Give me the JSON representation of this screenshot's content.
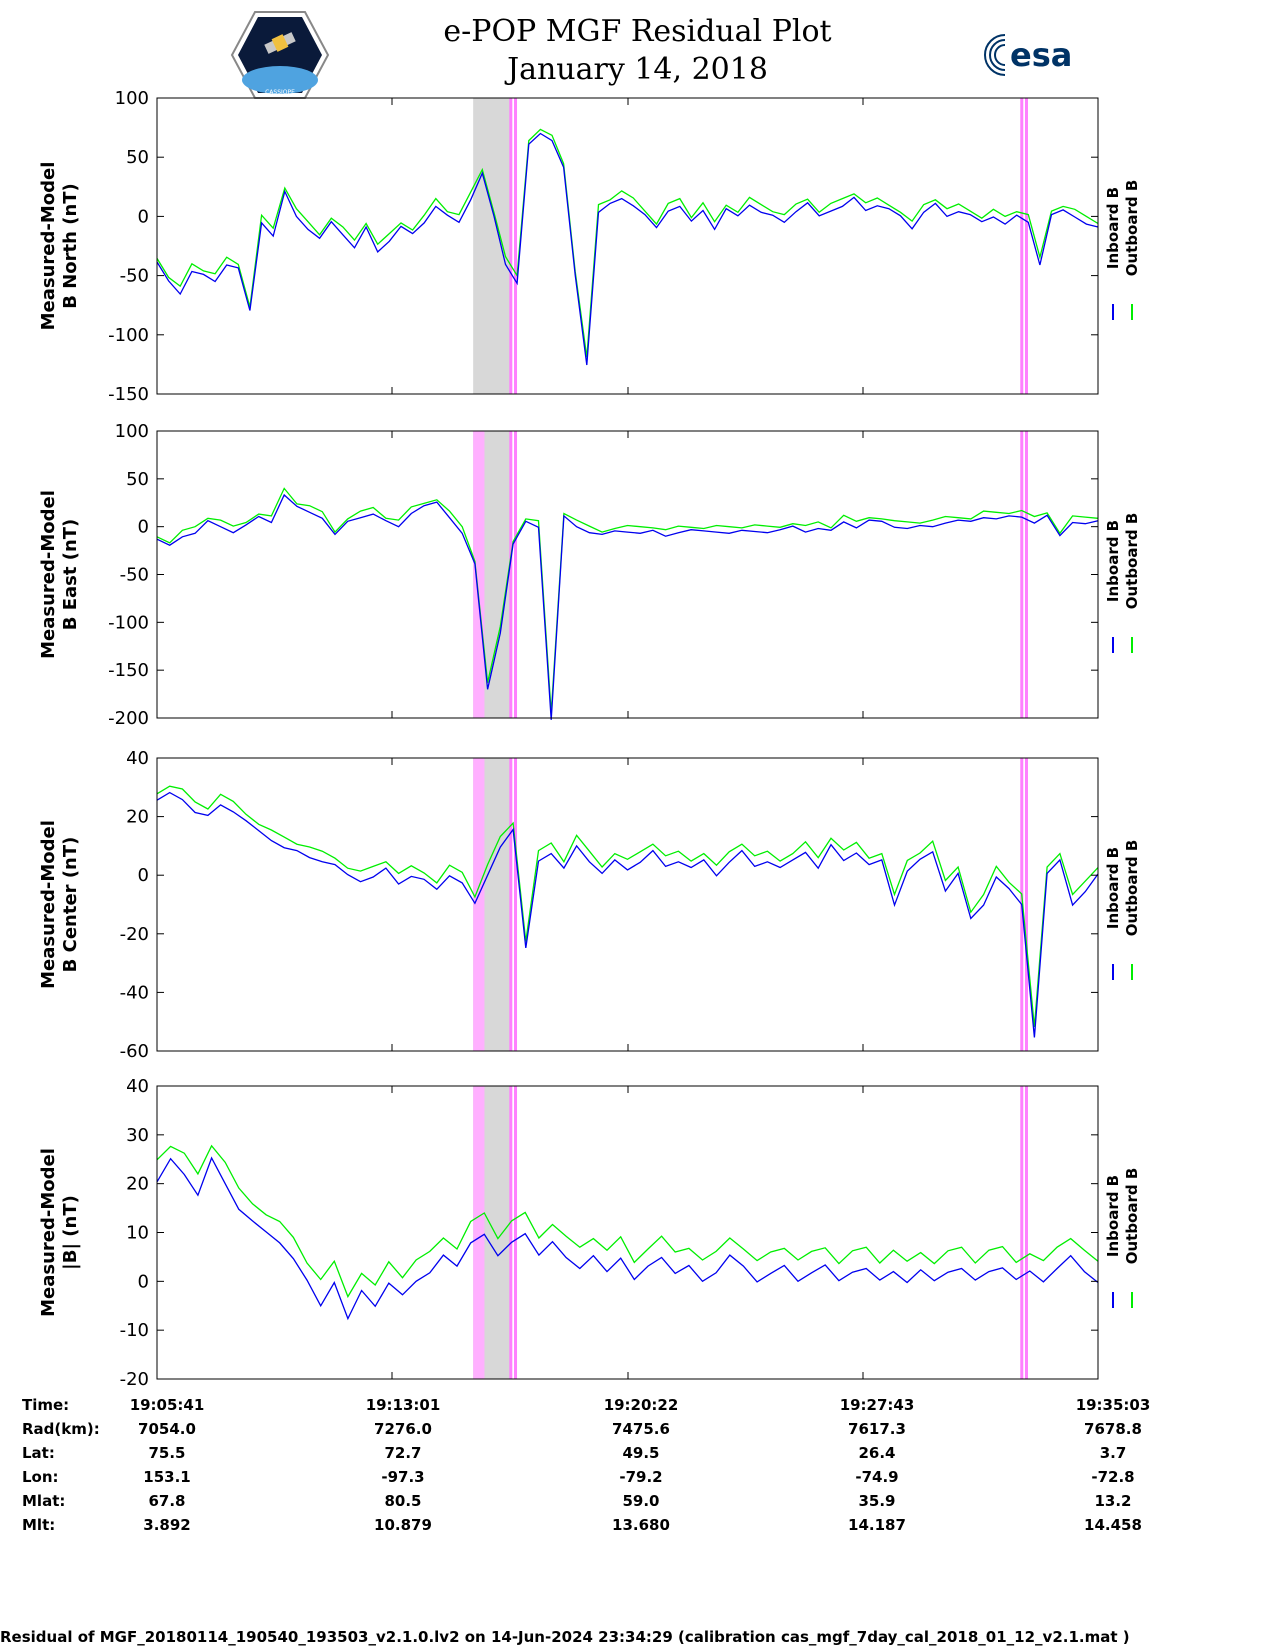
{
  "header": {
    "title_line1": "e-POP MGF Residual Plot",
    "title_line2": "January 14, 2018",
    "logo_left_text": "CASSIOPE",
    "logo_right_text": "esa"
  },
  "colors": {
    "inboard": "#0000ee",
    "outboard": "#00ee00",
    "gray_band": "#d8d8d8",
    "pink_band": "#ffb0ff",
    "magenta_line": "#ff80ff"
  },
  "legend": {
    "inboard": "Inboard B",
    "outboard": "Outboard B"
  },
  "chart_data": [
    {
      "type": "line",
      "ylabel_line1": "Measured-Model",
      "ylabel_line2": "B North (nT)",
      "ylim": [
        -150,
        100
      ],
      "yticks": [
        100,
        50,
        0,
        -50,
        -100,
        -150
      ],
      "grid": false,
      "series": [
        {
          "name": "Inboard B",
          "values": [
            -40,
            -55,
            -65,
            -45,
            -50,
            -55,
            -40,
            -45,
            -80,
            -5,
            -15,
            20,
            0,
            -10,
            -20,
            -5,
            -15,
            -25,
            -10,
            -30,
            -20,
            -10,
            -15,
            -5,
            10,
            0,
            -5,
            15,
            35,
            0,
            -40,
            -55,
            60,
            70,
            65,
            40,
            -50,
            -125,
            5,
            10,
            15,
            10,
            0,
            -10,
            5,
            10,
            -5,
            5,
            -10,
            5,
            0,
            10,
            5,
            0,
            -5,
            5,
            10,
            0,
            5,
            10,
            15,
            5,
            10,
            5,
            0,
            -10,
            5,
            10,
            0,
            5,
            0,
            -5,
            0,
            -5,
            0,
            -5,
            -40,
            0,
            5,
            0,
            -5,
            -10
          ]
        },
        {
          "name": "Outboard B",
          "values": [
            -35,
            -50,
            -60,
            -40,
            -45,
            -50,
            -35,
            -40,
            -75,
            0,
            -10,
            25,
            5,
            -5,
            -15,
            0,
            -10,
            -20,
            -5,
            -25,
            -15,
            -5,
            -10,
            0,
            15,
            5,
            0,
            20,
            40,
            5,
            -35,
            -50,
            65,
            72,
            68,
            45,
            -45,
            -120,
            10,
            15,
            20,
            15,
            5,
            -5,
            10,
            15,
            0,
            10,
            -5,
            10,
            5,
            15,
            10,
            5,
            0,
            10,
            15,
            5,
            10,
            15,
            20,
            10,
            15,
            10,
            5,
            -5,
            10,
            15,
            5,
            10,
            5,
            0,
            5,
            0,
            5,
            0,
            -35,
            5,
            10,
            5,
            0,
            -5
          ]
        }
      ]
    },
    {
      "type": "line",
      "ylabel_line1": "Measured-Model",
      "ylabel_line2": "B East (nT)",
      "ylim": [
        -200,
        100
      ],
      "yticks": [
        100,
        50,
        0,
        -50,
        -100,
        -150,
        -200
      ],
      "grid": false,
      "series": [
        {
          "name": "Inboard B",
          "values": [
            -15,
            -20,
            -10,
            -5,
            5,
            0,
            -5,
            0,
            10,
            5,
            35,
            20,
            15,
            10,
            -10,
            5,
            10,
            15,
            5,
            0,
            15,
            20,
            25,
            10,
            -5,
            -40,
            -170,
            -110,
            -20,
            5,
            0,
            -200,
            10,
            0,
            -5,
            -10,
            -5,
            -5,
            -5,
            -5,
            -10,
            -5,
            -5,
            -5,
            -5,
            -5,
            -5,
            -5,
            -5,
            -5,
            0,
            -5,
            0,
            -5,
            5,
            0,
            5,
            5,
            0,
            0,
            0,
            0,
            5,
            5,
            5,
            10,
            10,
            10,
            10,
            5,
            10,
            -10,
            5,
            5,
            5
          ]
        },
        {
          "name": "Outboard B",
          "values": [
            -10,
            -15,
            -5,
            0,
            10,
            5,
            0,
            5,
            15,
            10,
            40,
            25,
            20,
            15,
            -5,
            10,
            15,
            20,
            10,
            5,
            20,
            25,
            30,
            15,
            0,
            -35,
            -165,
            -105,
            -15,
            10,
            5,
            -195,
            15,
            5,
            0,
            -5,
            0,
            0,
            0,
            0,
            -5,
            0,
            0,
            0,
            0,
            0,
            0,
            0,
            0,
            0,
            5,
            0,
            5,
            0,
            10,
            5,
            10,
            10,
            5,
            5,
            5,
            5,
            10,
            10,
            10,
            15,
            15,
            15,
            15,
            10,
            15,
            -5,
            10,
            10,
            10
          ]
        }
      ]
    },
    {
      "type": "line",
      "ylabel_line1": "Measured-Model",
      "ylabel_line2": "B Center (nT)",
      "ylim": [
        -60,
        40
      ],
      "yticks": [
        40,
        20,
        0,
        -20,
        -40,
        -60
      ],
      "grid": false,
      "series": [
        {
          "name": "Inboard B",
          "values": [
            25,
            28,
            26,
            22,
            20,
            24,
            22,
            18,
            15,
            12,
            10,
            8,
            6,
            5,
            3,
            0,
            -2,
            0,
            2,
            -3,
            0,
            -2,
            -5,
            0,
            -2,
            -10,
            0,
            10,
            15,
            -25,
            5,
            8,
            2,
            10,
            5,
            0,
            5,
            2,
            5,
            8,
            3,
            5,
            2,
            5,
            0,
            5,
            8,
            3,
            5,
            2,
            5,
            8,
            3,
            10,
            5,
            8,
            3,
            5,
            -10,
            2,
            5,
            8,
            -5,
            0,
            -15,
            -10,
            0,
            -5,
            -10,
            -55,
            0,
            5,
            -10,
            -5,
            0
          ]
        },
        {
          "name": "Outboard B",
          "values": [
            28,
            31,
            29,
            25,
            23,
            27,
            25,
            21,
            18,
            15,
            13,
            11,
            9,
            8,
            6,
            3,
            1,
            3,
            5,
            0,
            3,
            1,
            -2,
            3,
            1,
            -7,
            3,
            13,
            18,
            -22,
            8,
            11,
            5,
            13,
            8,
            3,
            8,
            5,
            8,
            11,
            6,
            8,
            5,
            8,
            3,
            8,
            11,
            6,
            8,
            5,
            8,
            11,
            6,
            13,
            8,
            11,
            6,
            8,
            -7,
            5,
            8,
            11,
            -2,
            3,
            -12,
            -7,
            3,
            -2,
            -7,
            -52,
            3,
            8,
            -7,
            -2,
            3
          ]
        }
      ]
    },
    {
      "type": "line",
      "ylabel_line1": "Measured-Model",
      "ylabel_line2": "|B| (nT)",
      "ylim": [
        -20,
        40
      ],
      "yticks": [
        40,
        30,
        20,
        10,
        0,
        -10,
        -20
      ],
      "grid": false,
      "series": [
        {
          "name": "Inboard B",
          "values": [
            20,
            25,
            22,
            18,
            25,
            20,
            15,
            12,
            10,
            8,
            5,
            0,
            -5,
            0,
            -8,
            -2,
            -5,
            0,
            -3,
            0,
            2,
            5,
            3,
            8,
            10,
            5,
            8,
            10,
            5,
            8,
            5,
            3,
            5,
            2,
            5,
            0,
            3,
            5,
            2,
            3,
            0,
            2,
            5,
            3,
            0,
            2,
            3,
            0,
            2,
            3,
            0,
            2,
            3,
            0,
            2,
            0,
            2,
            0,
            2,
            3,
            0,
            2,
            3,
            0,
            2,
            0,
            3,
            5,
            2,
            0
          ]
        },
        {
          "name": "Outboard B",
          "values": [
            25,
            28,
            26,
            22,
            28,
            24,
            19,
            16,
            14,
            12,
            9,
            4,
            0,
            4,
            -3,
            2,
            -1,
            4,
            1,
            4,
            6,
            9,
            7,
            12,
            14,
            9,
            12,
            14,
            9,
            12,
            9,
            7,
            9,
            6,
            9,
            4,
            7,
            9,
            6,
            7,
            4,
            6,
            9,
            7,
            4,
            6,
            7,
            4,
            6,
            7,
            4,
            6,
            7,
            4,
            6,
            4,
            6,
            4,
            6,
            7,
            4,
            6,
            7,
            4,
            6,
            4,
            7,
            9,
            6,
            4
          ]
        }
      ]
    }
  ],
  "shaded_regions": {
    "note_units": "fraction of time axis",
    "gray": [
      0.336,
      0.376
    ],
    "pink_panels": [
      [
        0.336,
        0.348
      ]
    ],
    "magenta_lines": [
      0.376,
      0.381,
      0.919,
      0.924
    ]
  },
  "metadata_table": {
    "labels": [
      "Time:",
      "Rad(km):",
      "Lat:",
      "Lon:",
      "Mlat:",
      "Mlt:"
    ],
    "columns": [
      {
        "Time": "19:05:41",
        "Rad": "7054.0",
        "Lat": "75.5",
        "Lon": "153.1",
        "Mlat": "67.8",
        "Mlt": "3.892"
      },
      {
        "Time": "19:13:01",
        "Rad": "7276.0",
        "Lat": "72.7",
        "Lon": "-97.3",
        "Mlat": "80.5",
        "Mlt": "10.879"
      },
      {
        "Time": "19:20:22",
        "Rad": "7475.6",
        "Lat": "49.5",
        "Lon": "-79.2",
        "Mlat": "59.0",
        "Mlt": "13.680"
      },
      {
        "Time": "19:27:43",
        "Rad": "7617.3",
        "Lat": "26.4",
        "Lon": "-74.9",
        "Mlat": "35.9",
        "Mlt": "14.187"
      },
      {
        "Time": "19:35:03",
        "Rad": "7678.8",
        "Lat": "3.7",
        "Lon": "-72.8",
        "Mlat": "13.2",
        "Mlt": "14.458"
      }
    ]
  },
  "footer": "Residual of MGF_20180114_190540_193503_v2.1.0.lv2 on 14-Jun-2024 23:34:29 (calibration cas_mgf_7day_cal_2018_01_12_v2.1.mat )"
}
